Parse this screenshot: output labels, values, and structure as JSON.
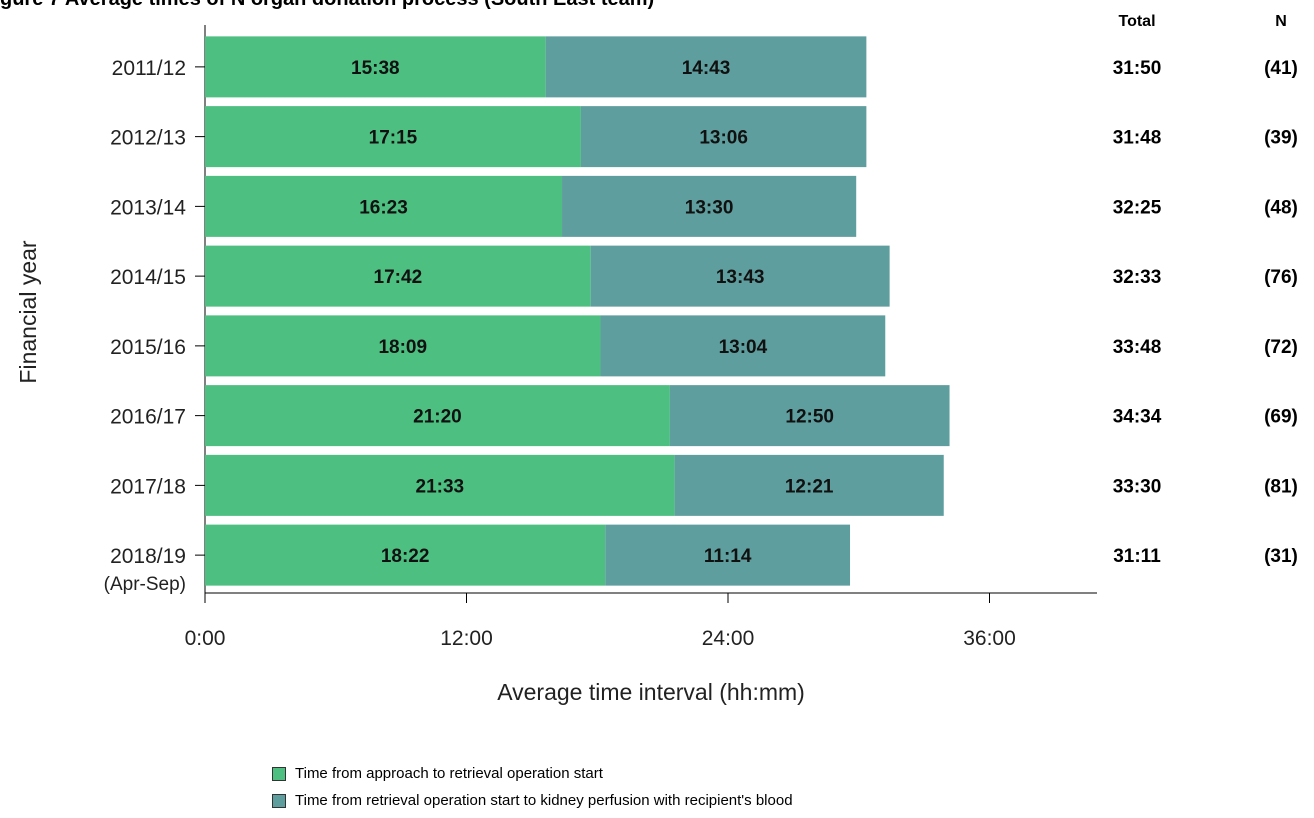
{
  "figure_title": "gure 7 Average times of N organ donation process (South East team)",
  "chart_data": {
    "type": "bar",
    "orientation": "horizontal",
    "stacked": true,
    "xlabel": "Average time interval (hh:mm)",
    "ylabel": "Financial year",
    "xlim_minutes": [
      0,
      2460
    ],
    "x_ticks": [
      {
        "value": 0,
        "label": "0:00"
      },
      {
        "value": 720,
        "label": "12:00"
      },
      {
        "value": 1440,
        "label": "24:00"
      },
      {
        "value": 2160,
        "label": "36:00"
      }
    ],
    "categories": [
      {
        "label": "2011/12",
        "sublabel": ""
      },
      {
        "label": "2012/13",
        "sublabel": ""
      },
      {
        "label": "2013/14",
        "sublabel": ""
      },
      {
        "label": "2014/15",
        "sublabel": ""
      },
      {
        "label": "2015/16",
        "sublabel": ""
      },
      {
        "label": "2016/17",
        "sublabel": ""
      },
      {
        "label": "2017/18",
        "sublabel": ""
      },
      {
        "label": "2018/19",
        "sublabel": "(Apr-Sep)"
      }
    ],
    "series": [
      {
        "name": "Time from approach to retrieval operation start",
        "color": "#4dbf80",
        "labels": [
          "15:38",
          "17:15",
          "16:23",
          "17:42",
          "18:09",
          "21:20",
          "21:33",
          "18:22"
        ],
        "values_minutes": [
          938,
          1035,
          983,
          1062,
          1089,
          1280,
          1293,
          1102
        ]
      },
      {
        "name": "Time from retrieval operation start to kidney perfusion with recipient's blood",
        "color": "#5f9e9e",
        "labels": [
          "14:43",
          "13:06",
          "13:30",
          "13:43",
          "13:04",
          "12:50",
          "12:21",
          "11:14"
        ],
        "values_minutes": [
          883,
          786,
          810,
          823,
          784,
          770,
          741,
          674
        ]
      }
    ],
    "total_header": "Total",
    "n_header": "N",
    "totals": [
      "31:50",
      "31:48",
      "32:25",
      "32:33",
      "33:48",
      "34:34",
      "33:30",
      "31:11"
    ],
    "n_values": [
      "(41)",
      "(39)",
      "(48)",
      "(76)",
      "(72)",
      "(69)",
      "(81)",
      "(31)"
    ]
  }
}
